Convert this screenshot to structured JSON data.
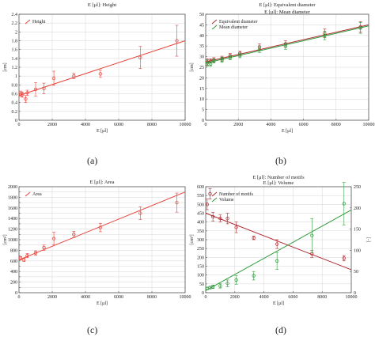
{
  "figure": {
    "panel_labels": [
      "(a)",
      "(b)",
      "(c)",
      "(d)"
    ]
  },
  "chart_data": [
    {
      "type": "scatter",
      "title": "E [μl]: Height",
      "xlabel": "E [μl]",
      "ylabel": "[cm]",
      "xlim": [
        0,
        10000
      ],
      "ylim": [
        0,
        2.4
      ],
      "xticks": [
        0,
        2000,
        4000,
        6000,
        8000,
        10000
      ],
      "yticks": [
        0,
        0.2,
        0.4,
        0.6,
        0.8,
        1.0,
        1.2,
        1.4,
        1.6,
        1.8,
        2.0,
        2.2,
        2.4
      ],
      "grid": true,
      "legend_position": "top-left",
      "series": [
        {
          "name": "Height",
          "color": "#e8433a",
          "marker": "circle",
          "x": [
            100,
            200,
            400,
            500,
            1000,
            1500,
            2100,
            3300,
            4900,
            7300,
            9500
          ],
          "y": [
            0.6,
            0.58,
            0.48,
            0.62,
            0.7,
            0.72,
            0.95,
            1.0,
            1.05,
            1.42,
            1.8
          ],
          "err": [
            0.06,
            0.06,
            0.08,
            0.06,
            0.15,
            0.12,
            0.16,
            0.06,
            0.08,
            0.25,
            0.35
          ],
          "fit": [
            0.56,
            1.8
          ]
        }
      ]
    },
    {
      "type": "scatter",
      "title": "E [μl]: Equivalent diameter\nE [μl]: Mean diameter",
      "xlabel": "E [μl]",
      "ylabel": "[cm]",
      "xlim": [
        0,
        10000
      ],
      "ylim": [
        0,
        50
      ],
      "xticks": [
        0,
        2000,
        4000,
        6000,
        8000,
        10000
      ],
      "yticks": [
        0,
        5,
        10,
        15,
        20,
        25,
        30,
        35,
        40,
        45,
        50
      ],
      "grid": true,
      "legend_position": "top-left",
      "series": [
        {
          "name": "Equivalent diameter",
          "color": "#b02a30",
          "marker": "circle",
          "x": [
            100,
            300,
            500,
            1000,
            1500,
            2100,
            3300,
            4900,
            7300,
            9500
          ],
          "y": [
            27.5,
            28.0,
            28.5,
            29.0,
            30.5,
            31.5,
            34.5,
            36.0,
            41.0,
            44.0
          ],
          "err": [
            1.5,
            1.0,
            1.0,
            1.2,
            1.0,
            1.0,
            1.5,
            1.5,
            2.0,
            2.5
          ],
          "fit": [
            27.5,
            45.0
          ]
        },
        {
          "name": "Mean diameter",
          "color": "#2e9b3a",
          "marker": "circle",
          "x": [
            100,
            300,
            500,
            1000,
            1500,
            2100,
            3300,
            4900,
            7300,
            9500
          ],
          "y": [
            27.0,
            26.5,
            28.0,
            28.5,
            29.5,
            30.5,
            33.5,
            35.0,
            40.0,
            43.5
          ],
          "err": [
            1.5,
            1.0,
            1.0,
            1.2,
            1.0,
            1.0,
            1.5,
            1.5,
            2.0,
            2.5
          ],
          "fit": [
            27.0,
            44.5
          ]
        }
      ]
    },
    {
      "type": "scatter",
      "title": "E [μl]: Area",
      "xlabel": "E [μl]",
      "ylabel": "[cm²]",
      "xlim": [
        0,
        10000
      ],
      "ylim": [
        0,
        2000
      ],
      "xticks": [
        0,
        2000,
        4000,
        6000,
        8000,
        10000
      ],
      "yticks": [
        0,
        100,
        200,
        300,
        400,
        500,
        600,
        700,
        800,
        900,
        1000,
        1100,
        1200,
        1300,
        1400,
        1500,
        1600,
        1700,
        1800,
        1900,
        2000
      ],
      "yticklabels": [
        "0",
        "",
        "200",
        "",
        "400",
        "",
        "600",
        "",
        "800",
        "",
        "1000",
        "",
        "1200",
        "",
        "1400",
        "",
        "1600",
        "",
        "1800",
        "",
        "2000"
      ],
      "grid": true,
      "legend_position": "top-left",
      "series": [
        {
          "name": "Area",
          "color": "#e8433a",
          "marker": "circle",
          "x": [
            100,
            300,
            500,
            1000,
            1500,
            2100,
            3300,
            4900,
            7300,
            9500
          ],
          "y": [
            650,
            620,
            700,
            750,
            850,
            1020,
            1100,
            1230,
            1500,
            1700
          ],
          "err": [
            30,
            30,
            40,
            40,
            50,
            120,
            60,
            80,
            120,
            180
          ],
          "fit": [
            620,
            1900
          ]
        }
      ]
    },
    {
      "type": "scatter",
      "title": "E [μl]: Number of motifs\nE [μl]: Volume",
      "xlabel": "E [μl]",
      "ylabel": "[cm³]",
      "y2label": "[-]",
      "xlim": [
        0,
        10000
      ],
      "ylim": [
        0,
        600
      ],
      "y2lim": [
        0,
        250
      ],
      "xticks": [
        0,
        2000,
        4000,
        6000,
        8000,
        10000
      ],
      "yticks": [
        0,
        50,
        100,
        150,
        200,
        250,
        300,
        350,
        400,
        450,
        500,
        550,
        600
      ],
      "y2ticks": [
        0,
        50,
        100,
        150,
        200,
        250
      ],
      "grid": true,
      "legend_position": "top-left",
      "series": [
        {
          "name": "Number of motifs",
          "color": "#b02a30",
          "marker": "circle",
          "axis": "left",
          "x": [
            100,
            300,
            500,
            1000,
            1500,
            2100,
            3300,
            4900,
            7300,
            9500
          ],
          "y": [
            500,
            560,
            430,
            420,
            420,
            370,
            310,
            275,
            220,
            195
          ],
          "err": [
            30,
            30,
            25,
            20,
            30,
            30,
            10,
            25,
            20,
            15
          ],
          "fit": [
            450,
            130
          ]
        },
        {
          "name": "Volume",
          "color": "#2e9b3a",
          "marker": "circle",
          "axis": "right",
          "x": [
            100,
            300,
            500,
            1000,
            1500,
            2100,
            3300,
            4900,
            7300,
            9500
          ],
          "y": [
            10,
            12,
            14,
            16,
            22,
            30,
            40,
            75,
            135,
            210
          ],
          "err": [
            3,
            3,
            4,
            5,
            8,
            10,
            10,
            20,
            40,
            50
          ],
          "fit": [
            5,
            195
          ]
        }
      ]
    }
  ]
}
